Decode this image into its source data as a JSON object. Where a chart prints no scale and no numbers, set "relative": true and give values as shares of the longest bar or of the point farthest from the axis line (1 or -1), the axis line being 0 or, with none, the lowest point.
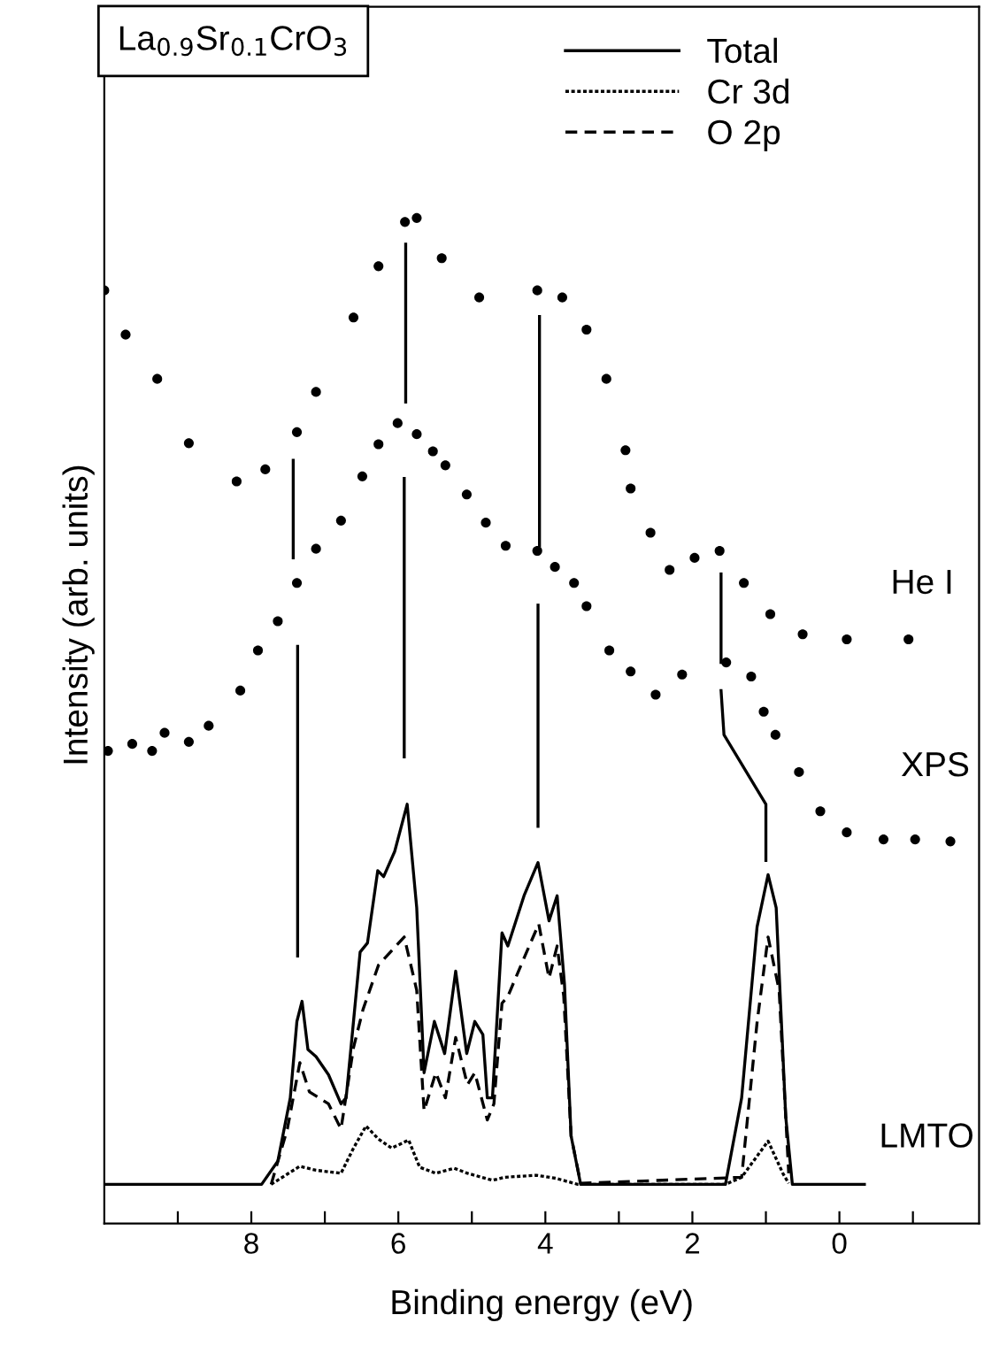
{
  "chart_data": {
    "type": "line",
    "relative": true,
    "xlabel": "Binding energy (eV)",
    "ylabel": "Intensity (arb. units)",
    "xlim": [
      10,
      -1.9
    ],
    "xticks": [
      {
        "value": 9,
        "label": null
      },
      8,
      {
        "value": 7,
        "label": null
      },
      6,
      {
        "value": 5,
        "label": null
      },
      4,
      {
        "value": 3,
        "label": null
      },
      2,
      {
        "value": 1,
        "label": null
      },
      0,
      {
        "value": -1,
        "label": null
      }
    ],
    "tick_labels": "x",
    "legend": "top right",
    "grid": false,
    "annotations": [
      "La$_{0.9}$Sr$_{0.1}$CrO$_{3}$",
      "He I",
      "XPS",
      "LMTO"
    ],
    "series": [
      {
        "type": "scatter",
        "marker": "circle",
        "color": "#000000",
        "x": [
          10.0,
          9.71,
          9.28,
          8.85,
          8.2,
          7.81,
          7.38,
          7.12,
          6.61,
          6.27,
          5.91,
          5.75,
          5.41,
          4.9,
          4.11,
          3.77,
          3.44,
          3.17,
          2.91,
          2.84,
          2.57,
          2.31,
          1.97,
          1.63,
          1.3,
          0.94,
          0.5,
          -0.1,
          -0.94
        ],
        "values": [
          0.928,
          0.884,
          0.84,
          0.776,
          0.738,
          0.75,
          0.787,
          0.827,
          0.901,
          0.952,
          0.996,
          1.0,
          0.96,
          0.921,
          0.928,
          0.921,
          0.889,
          0.84,
          0.769,
          0.731,
          0.687,
          0.65,
          0.662,
          0.669,
          0.637,
          0.606,
          0.586,
          0.581,
          0.581
        ]
      },
      {
        "type": "scatter",
        "marker": "circle",
        "color": "#000000",
        "x": [
          9.95,
          9.62,
          9.35,
          9.18,
          8.85,
          8.58,
          8.15,
          7.91,
          7.64,
          7.38,
          7.12,
          6.78,
          6.49,
          6.27,
          6.01,
          5.75,
          5.53,
          5.36,
          5.07,
          4.81,
          4.54,
          4.11,
          3.87,
          3.61,
          3.44,
          3.13,
          2.84,
          2.5,
          2.14,
          1.54,
          1.2,
          1.03,
          0.87,
          0.55,
          0.26,
          -0.1,
          -0.6,
          -1.03,
          -1.51
        ],
        "values": [
          0.47,
          0.477,
          0.47,
          0.488,
          0.479,
          0.495,
          0.53,
          0.57,
          0.599,
          0.637,
          0.671,
          0.699,
          0.743,
          0.775,
          0.796,
          0.785,
          0.768,
          0.754,
          0.725,
          0.697,
          0.674,
          0.669,
          0.653,
          0.637,
          0.614,
          0.57,
          0.549,
          0.526,
          0.546,
          0.558,
          0.544,
          0.509,
          0.486,
          0.449,
          0.41,
          0.389,
          0.382,
          0.382,
          0.38
        ]
      },
      {
        "name": "Total",
        "line_style": "solid",
        "color": "#000000",
        "x": [
          9.97,
          7.86,
          7.64,
          7.47,
          7.38,
          7.31,
          7.23,
          7.12,
          6.95,
          6.78,
          6.71,
          6.61,
          6.52,
          6.42,
          6.28,
          6.2,
          6.05,
          5.88,
          5.75,
          5.65,
          5.51,
          5.37,
          5.22,
          5.07,
          4.96,
          4.85,
          4.79,
          4.72,
          4.59,
          4.51,
          4.29,
          4.1,
          3.95,
          3.84,
          3.74,
          3.65,
          3.52,
          1.55,
          1.33,
          1.12,
          0.97,
          0.86,
          0.73,
          0.64,
          -0.34
        ],
        "values": [
          0.039,
          0.039,
          0.062,
          0.125,
          0.201,
          0.221,
          0.173,
          0.166,
          0.148,
          0.119,
          0.125,
          0.201,
          0.27,
          0.279,
          0.351,
          0.345,
          0.37,
          0.417,
          0.314,
          0.15,
          0.201,
          0.169,
          0.251,
          0.169,
          0.201,
          0.188,
          0.125,
          0.125,
          0.289,
          0.276,
          0.326,
          0.359,
          0.301,
          0.326,
          0.238,
          0.087,
          0.039,
          0.039,
          0.125,
          0.295,
          0.347,
          0.314,
          0.106,
          0.039,
          0.039
        ]
      },
      {
        "name": "Cr 3d",
        "line_style": "dotted",
        "color": "#000000",
        "x": [
          7.73,
          7.34,
          7.12,
          6.78,
          6.61,
          6.44,
          6.27,
          6.09,
          5.86,
          5.71,
          5.49,
          5.24,
          5.06,
          4.72,
          4.55,
          4.12,
          3.86,
          3.56,
          1.55,
          1.33,
          0.97,
          0.77,
          0.69
        ],
        "values": [
          0.039,
          0.057,
          0.053,
          0.05,
          0.075,
          0.097,
          0.084,
          0.075,
          0.083,
          0.056,
          0.05,
          0.055,
          0.05,
          0.043,
          0.046,
          0.048,
          0.045,
          0.039,
          0.039,
          0.046,
          0.082,
          0.05,
          0.04
        ]
      },
      {
        "name": "O 2p",
        "line_style": "dashed",
        "color": "#000000",
        "x": [
          7.73,
          7.51,
          7.34,
          7.21,
          6.95,
          6.78,
          6.61,
          6.48,
          6.27,
          5.92,
          5.75,
          5.65,
          5.49,
          5.36,
          5.22,
          5.06,
          4.96,
          4.79,
          4.7,
          4.59,
          4.51,
          4.29,
          4.09,
          3.95,
          3.84,
          3.75,
          3.65,
          3.52,
          1.33,
          1.12,
          0.97,
          0.82,
          0.69
        ],
        "values": [
          0.039,
          0.094,
          0.16,
          0.131,
          0.119,
          0.094,
          0.175,
          0.213,
          0.257,
          0.285,
          0.232,
          0.112,
          0.15,
          0.125,
          0.185,
          0.138,
          0.15,
          0.103,
          0.119,
          0.219,
          0.226,
          0.264,
          0.298,
          0.244,
          0.276,
          0.226,
          0.087,
          0.04,
          0.046,
          0.2,
          0.285,
          0.232,
          0.05
        ]
      },
      {
        "line_style": "solid",
        "color": "#000000",
        "x": [
          7.43,
          7.43
        ],
        "values": [
          0.759,
          0.662
        ]
      },
      {
        "line_style": "solid",
        "color": "#000000",
        "x": [
          7.37,
          7.37
        ],
        "values": [
          0.574,
          0.266
        ]
      },
      {
        "line_style": "solid",
        "color": "#000000",
        "x": [
          5.9,
          5.9
        ],
        "values": [
          0.974,
          0.817
        ]
      },
      {
        "line_style": "solid",
        "color": "#000000",
        "x": [
          5.92,
          5.92
        ],
        "values": [
          0.741,
          0.464
        ]
      },
      {
        "line_style": "solid",
        "color": "#000000",
        "x": [
          4.08,
          4.08
        ],
        "values": [
          0.902,
          0.674
        ]
      },
      {
        "line_style": "solid",
        "color": "#000000",
        "x": [
          4.1,
          4.1
        ],
        "values": [
          0.615,
          0.395
        ]
      },
      {
        "line_style": "solid",
        "color": "#000000",
        "x": [
          1.61,
          1.61
        ],
        "values": [
          0.646,
          0.558
        ]
      },
      {
        "line_style": "solid",
        "color": "#000000",
        "x": [
          1.61,
          1.57,
          1.0,
          1.0
        ],
        "values": [
          0.53,
          0.486,
          0.417,
          0.361
        ]
      }
    ]
  }
}
